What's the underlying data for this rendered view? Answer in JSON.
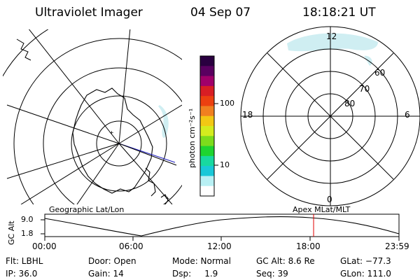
{
  "header": {
    "title": "Ultraviolet Imager",
    "date": "04 Sep 07",
    "time": "18:18:21 UT"
  },
  "left_panel": {
    "caption": "Geographic Lat/Lon"
  },
  "right_panel": {
    "caption": "Apex  MLat/MLT",
    "mlt_labels": {
      "top": "12",
      "left": "18",
      "right": "6",
      "bottom": "0"
    },
    "lat_labels": [
      "60",
      "70",
      "80"
    ]
  },
  "colorbar": {
    "unit_label": "photon cm⁻²s⁻¹",
    "ticks": [
      "100",
      "10"
    ],
    "colors": [
      "#2a0040",
      "#5a0060",
      "#a0006a",
      "#d81e24",
      "#ec4010",
      "#f08020",
      "#f2c814",
      "#d4ec1e",
      "#7cdc1c",
      "#1ed430",
      "#18d8a0",
      "#19c8d8",
      "#b8f0f4",
      "#ffffff"
    ]
  },
  "altitude_panel": {
    "axis_label": "GC Alt",
    "y_ticks": [
      "9.0",
      "1.8"
    ],
    "x_ticks": [
      "00:00",
      "06:00",
      "12:00",
      "18:00",
      "23:59"
    ],
    "marker_color": "#e00000"
  },
  "footer": {
    "filter": "Flt: LBHL",
    "door": "Door: Open",
    "mode": "Mode: Normal",
    "gc_alt": "GC Alt: 8.6 Re",
    "glat": "GLat: −77.3",
    "ip": "IP: 36.0",
    "gain": "Gain: 14",
    "dsp": "Dsp:     1.9",
    "seq": "Seq: 39",
    "glon": "GLon: 111.0"
  }
}
